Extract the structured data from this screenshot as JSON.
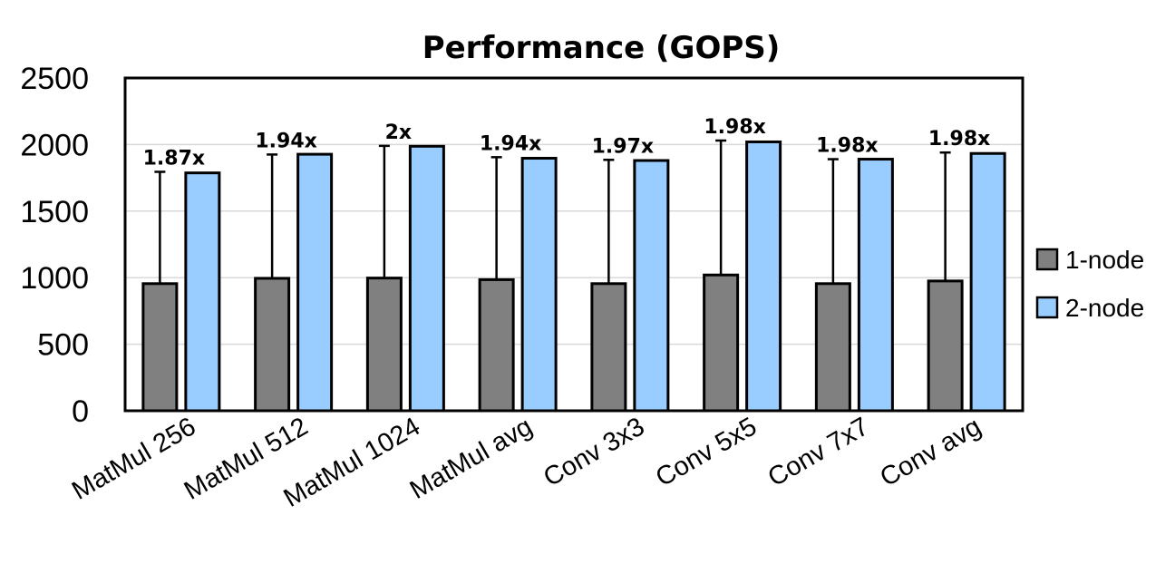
{
  "chart_data": {
    "type": "bar",
    "title": "Performance (GOPS)",
    "xlabel": "",
    "ylabel": "",
    "ylim": [
      0,
      2500
    ],
    "yticks": [
      0,
      500,
      1000,
      1500,
      2000,
      2500
    ],
    "grid": true,
    "legend_position": "right",
    "categories": [
      "MatMul 256",
      "MatMul 512",
      "MatMul 1024",
      "MatMul avg",
      "Conv 3x3",
      "Conv 5x5",
      "Conv 7x7",
      "Conv avg"
    ],
    "series": [
      {
        "name": "1-node",
        "color": "#808080",
        "values": [
          955,
          995,
          997,
          985,
          955,
          1020,
          955,
          975
        ],
        "error_upper": [
          1795,
          1925,
          1990,
          1905,
          1885,
          2030,
          1890,
          1940
        ]
      },
      {
        "name": "2-node",
        "color": "#99ccff",
        "values": [
          1787,
          1927,
          1987,
          1897,
          1880,
          2020,
          1890,
          1933
        ]
      }
    ],
    "annotations": [
      "1.87x",
      "1.94x",
      "2x",
      "1.94x",
      "1.97x",
      "1.98x",
      "1.98x",
      "1.98x"
    ]
  }
}
